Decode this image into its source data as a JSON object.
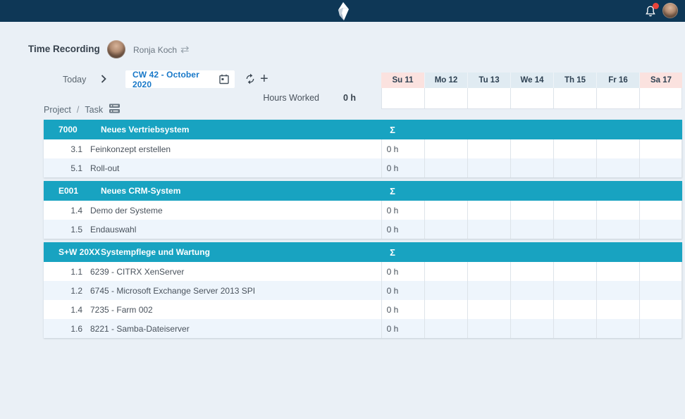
{
  "header": {
    "title": "Time Recording",
    "user_name": "Ronja Koch"
  },
  "toolbar": {
    "today_label": "Today",
    "week_selector": "CW 42 - October 2020",
    "hours_worked_label": "Hours Worked",
    "hours_worked_value": "0 h",
    "project_label": "Project",
    "separator": "/",
    "task_label": "Task"
  },
  "days": [
    {
      "label": "Su 11"
    },
    {
      "label": "Mo 12"
    },
    {
      "label": "Tu 13"
    },
    {
      "label": "We 14"
    },
    {
      "label": "Th 15"
    },
    {
      "label": "Fr 16"
    },
    {
      "label": "Sa 17"
    }
  ],
  "sections": [
    {
      "code": "7000",
      "name": "Neues Vertriebsystem",
      "sum_symbol": "Σ",
      "tasks": [
        {
          "number": "3.1",
          "name": "Feinkonzept erstellen",
          "hours": "0 h"
        },
        {
          "number": "5.1",
          "name": "Roll-out",
          "hours": "0 h"
        }
      ]
    },
    {
      "code": "E001",
      "name": "Neues CRM-System",
      "sum_symbol": "Σ",
      "tasks": [
        {
          "number": "1.4",
          "name": "Demo der Systeme",
          "hours": "0 h"
        },
        {
          "number": "1.5",
          "name": "Endauswahl",
          "hours": "0 h"
        }
      ]
    },
    {
      "code": "S+W 20XX",
      "name": "Systempflege und Wartung",
      "sum_symbol": "Σ",
      "tasks": [
        {
          "number": "1.1",
          "name": "6239 - CITRX XenServer",
          "hours": "0 h"
        },
        {
          "number": "1.2",
          "name": "6745 - Microsoft Exchange Server 2013 SPI",
          "hours": "0 h"
        },
        {
          "number": "1.4",
          "name": "7235 - Farm 002",
          "hours": "0 h"
        },
        {
          "number": "1.6",
          "name": "8221 - Samba-Dateiserver",
          "hours": "0 h"
        }
      ]
    }
  ],
  "colors": {
    "topbar_navy": "#0e3756",
    "section_teal": "#18a3c1",
    "weekend_pink": "#fbe2df",
    "weekday_header": "#e0ebf2",
    "alt_row_blue": "#eef5fc",
    "link_blue": "#1878c8",
    "notification_red": "#e8443a",
    "page_background": "#eaf0f6"
  }
}
